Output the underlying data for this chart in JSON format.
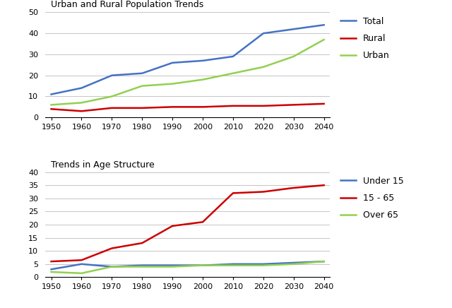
{
  "years": [
    1950,
    1960,
    1970,
    1980,
    1990,
    2000,
    2010,
    2020,
    2030,
    2040
  ],
  "chart1": {
    "title": "Urban and Rural Population Trends",
    "total": [
      11,
      14,
      20,
      21,
      26,
      27,
      29,
      40,
      42,
      44
    ],
    "rural": [
      4,
      3,
      4.5,
      4.5,
      5,
      5,
      5.5,
      5.5,
      6,
      6.5
    ],
    "urban": [
      6,
      7,
      10,
      15,
      16,
      18,
      21,
      24,
      29,
      37
    ],
    "colors": {
      "total": "#4472C4",
      "rural": "#CC0000",
      "urban": "#92D050"
    },
    "ylim": [
      0,
      50
    ],
    "yticks": [
      0,
      10,
      20,
      30,
      40,
      50
    ],
    "legend_labels": [
      "Total",
      "Rural",
      "Urban"
    ]
  },
  "chart2": {
    "title": "Trends in Age Structure",
    "under15": [
      3,
      5,
      4,
      4.5,
      4.5,
      4.5,
      5,
      5,
      5.5,
      6
    ],
    "age1565": [
      6,
      6.5,
      11,
      13,
      19.5,
      21,
      32,
      32.5,
      34,
      35
    ],
    "over65": [
      2,
      1.5,
      4,
      4,
      4,
      4.5,
      4.5,
      4.5,
      5,
      6
    ],
    "colors": {
      "under15": "#4472C4",
      "age1565": "#CC0000",
      "over65": "#92D050"
    },
    "ylim": [
      0,
      40
    ],
    "yticks": [
      0,
      5,
      10,
      15,
      20,
      25,
      30,
      35,
      40
    ],
    "legend_labels": [
      "Under 15",
      "15 - 65",
      "Over 65"
    ]
  },
  "background_color": "#FFFFFF",
  "grid_color": "#BBBBBB",
  "line_width": 1.8
}
